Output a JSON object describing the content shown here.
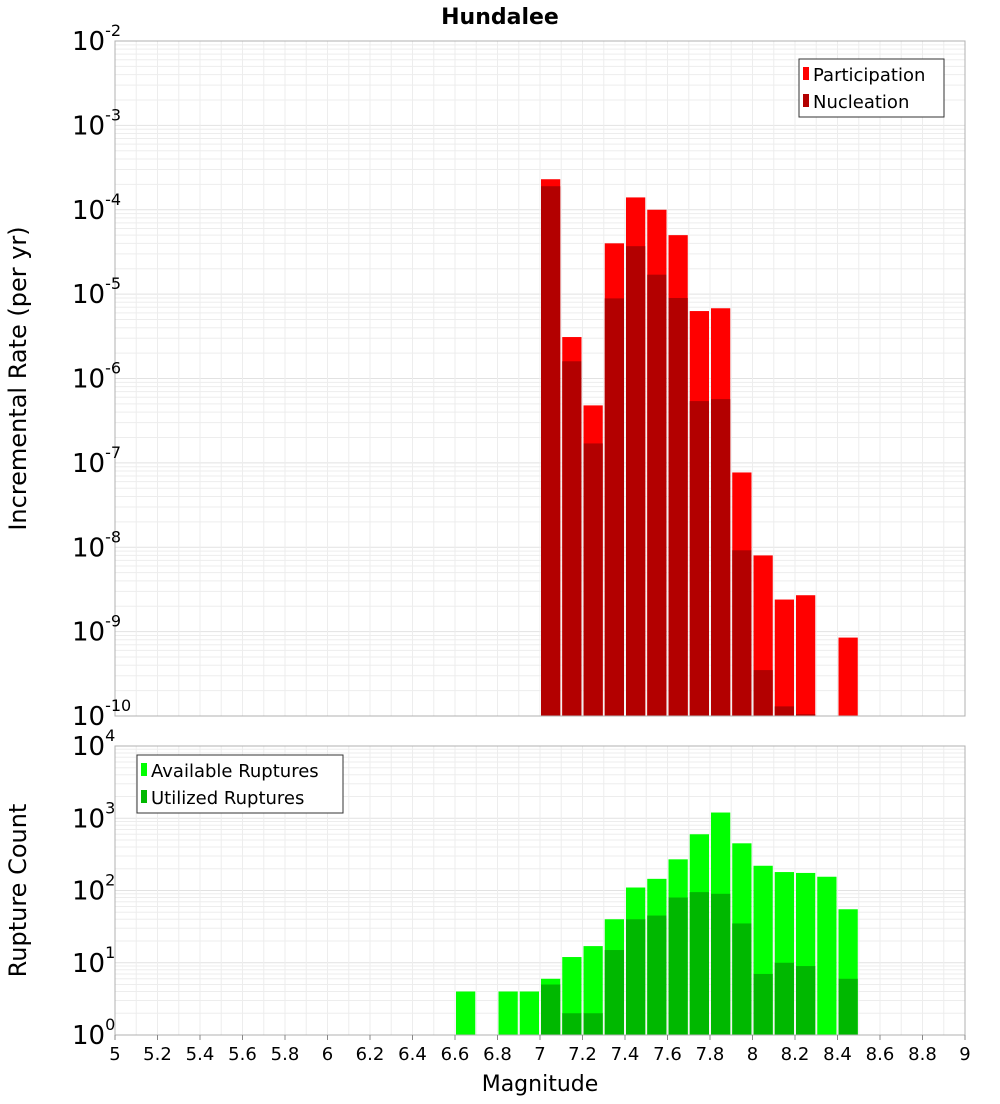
{
  "chart_data": [
    {
      "type": "bar",
      "title": "Hundalee",
      "xlabel": "",
      "ylabel": "Incremental Rate (per yr)",
      "yscale": "log",
      "xlim": [
        5,
        9
      ],
      "ylim": [
        1e-10,
        0.01
      ],
      "ytick_base": "10",
      "ytick_exponents": [
        "-10",
        "-9",
        "-8",
        "-7",
        "-6",
        "-5",
        "-4",
        "-3",
        "-2"
      ],
      "legend": {
        "position": "top-right",
        "entries": [
          "Participation",
          "Nucleation"
        ]
      },
      "grid": true,
      "bin_width": 0.1,
      "series": [
        {
          "name": "Participation",
          "color": "#ff0000",
          "x": [
            7.05,
            7.15,
            7.25,
            7.35,
            7.45,
            7.55,
            7.65,
            7.75,
            7.85,
            7.95,
            8.05,
            8.15,
            8.25,
            8.45
          ],
          "values": [
            0.00023,
            3.1e-06,
            4.8e-07,
            4e-05,
            0.00014,
            0.0001,
            5e-05,
            6.3e-06,
            6.8e-06,
            7.7e-08,
            8e-09,
            2.4e-09,
            2.7e-09,
            8.5e-10
          ]
        },
        {
          "name": "Nucleation",
          "color": "#b30000",
          "x": [
            7.05,
            7.15,
            7.25,
            7.35,
            7.45,
            7.55,
            7.65,
            7.75,
            7.85,
            7.95,
            8.05,
            8.15,
            8.25
          ],
          "values": [
            0.00019,
            1.6e-06,
            1.7e-07,
            8.9e-06,
            3.7e-05,
            1.7e-05,
            9e-06,
            5.4e-07,
            5.7e-07,
            9.2e-09,
            3.5e-10,
            1.3e-10,
            1.05e-10
          ]
        }
      ]
    },
    {
      "type": "bar",
      "title": "",
      "xlabel": "Magnitude",
      "ylabel": "Rupture Count",
      "yscale": "log",
      "xlim": [
        5,
        9
      ],
      "ylim": [
        1,
        10000
      ],
      "ytick_base": "10",
      "ytick_exponents": [
        "0",
        "1",
        "2",
        "3",
        "4"
      ],
      "xticks": [
        "5",
        "5.2",
        "5.4",
        "5.6",
        "5.8",
        "6",
        "6.2",
        "6.4",
        "6.6",
        "6.8",
        "7",
        "7.2",
        "7.4",
        "7.6",
        "7.8",
        "8",
        "8.2",
        "8.4",
        "8.6",
        "8.8",
        "9"
      ],
      "legend": {
        "position": "top-left",
        "entries": [
          "Available Ruptures",
          "Utilized Ruptures"
        ]
      },
      "grid": true,
      "bin_width": 0.1,
      "series": [
        {
          "name": "Available Ruptures",
          "color": "#00ff00",
          "x": [
            6.65,
            6.85,
            6.95,
            7.05,
            7.15,
            7.25,
            7.35,
            7.45,
            7.55,
            7.65,
            7.75,
            7.85,
            7.95,
            8.05,
            8.15,
            8.25,
            8.35,
            8.45
          ],
          "values": [
            4,
            4,
            4,
            6,
            12,
            17,
            40,
            110,
            145,
            270,
            600,
            1200,
            450,
            220,
            180,
            175,
            155,
            55
          ]
        },
        {
          "name": "Utilized Ruptures",
          "color": "#00b800",
          "x": [
            7.05,
            7.15,
            7.25,
            7.35,
            7.45,
            7.55,
            7.65,
            7.75,
            7.85,
            7.95,
            8.05,
            8.15,
            8.25,
            8.45
          ],
          "values": [
            5,
            2,
            2,
            15,
            40,
            45,
            80,
            95,
            90,
            35,
            7,
            10,
            9,
            6
          ]
        }
      ]
    }
  ]
}
